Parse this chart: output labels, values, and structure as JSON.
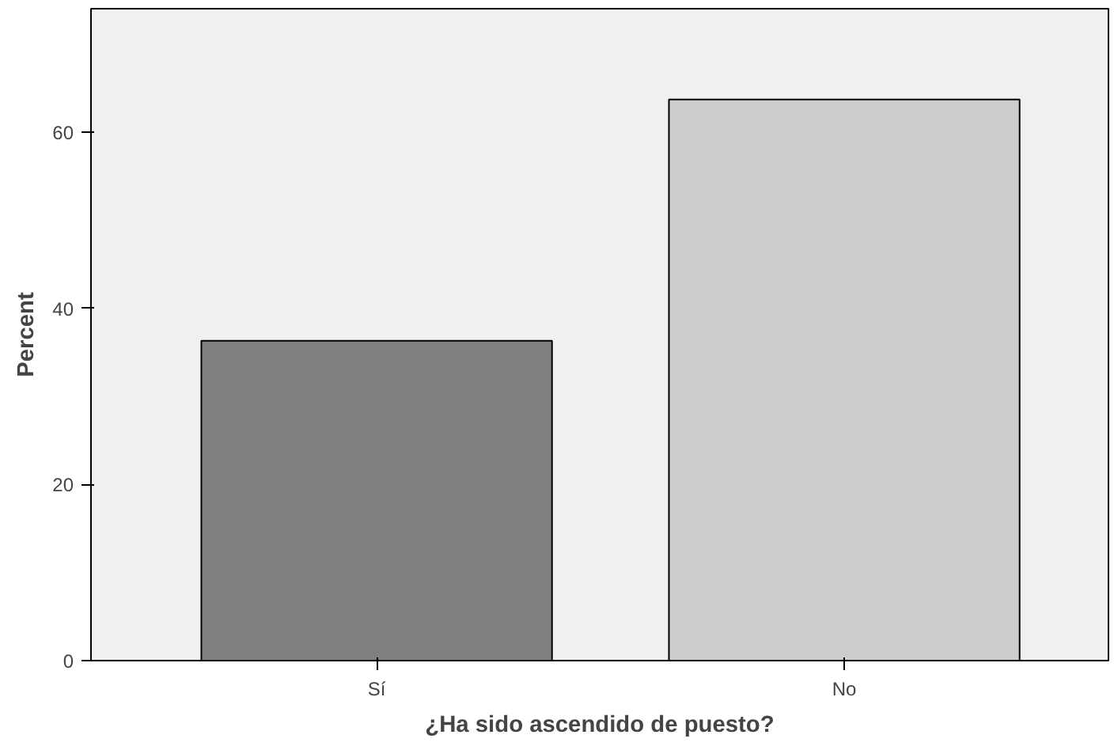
{
  "chart_data": {
    "type": "bar",
    "xlabel": "¿Ha sido ascendido de puesto?",
    "ylabel": "Percent",
    "categories": [
      "Sí",
      "No"
    ],
    "colors": [
      "#808080",
      "#cccccc"
    ],
    "values": [
      36.3,
      63.7
    ],
    "ylim": [
      0,
      74
    ],
    "yticks": [
      0,
      20,
      40,
      60
    ],
    "grid": false
  }
}
